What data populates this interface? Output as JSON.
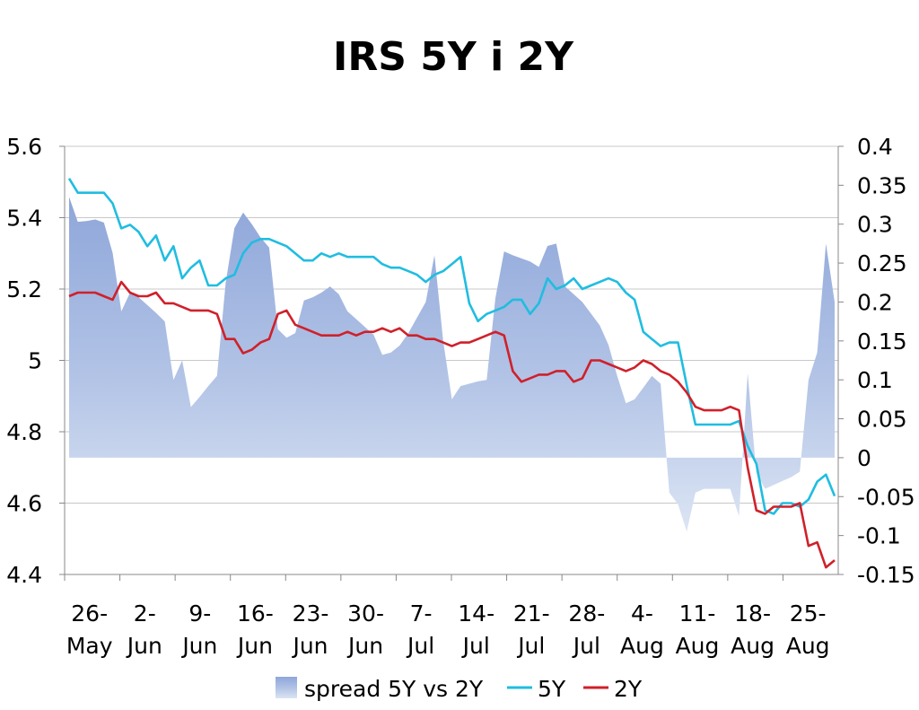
{
  "chart_data": {
    "type": "line",
    "title": "IRS 5Y i 2Y",
    "xlabel": "",
    "ylabel": "",
    "ylim": [
      4.4,
      5.6
    ],
    "y2lim": [
      -0.15,
      0.4
    ],
    "y_ticks": [
      "5.6",
      "5.4",
      "5.2",
      "5",
      "4.8",
      "4.6",
      "4.4"
    ],
    "y2_ticks": [
      "0.4",
      "0.35",
      "0.3",
      "0.25",
      "0.2",
      "0.15",
      "0.1",
      "0.05",
      "0",
      "-0.05",
      "-0.1",
      "-0.15"
    ],
    "x_ticks": [
      {
        "top": "26-",
        "bottom": "May"
      },
      {
        "top": "2-",
        "bottom": "Jun"
      },
      {
        "top": "9-",
        "bottom": "Jun"
      },
      {
        "top": "16-",
        "bottom": "Jun"
      },
      {
        "top": "23-",
        "bottom": "Jun"
      },
      {
        "top": "30-",
        "bottom": "Jun"
      },
      {
        "top": "7-",
        "bottom": "Jul"
      },
      {
        "top": "14-",
        "bottom": "Jul"
      },
      {
        "top": "21-",
        "bottom": "Jul"
      },
      {
        "top": "28-",
        "bottom": "Jul"
      },
      {
        "top": "4-",
        "bottom": "Aug"
      },
      {
        "top": "11-",
        "bottom": "Aug"
      },
      {
        "top": "18-",
        "bottom": "Aug"
      },
      {
        "top": "25-",
        "bottom": "Aug"
      }
    ],
    "grid": true,
    "legend_position": "bottom",
    "series": [
      {
        "name": "spread 5Y vs 2Y",
        "kind": "area",
        "axis": "right",
        "color": "#9fb3de",
        "values": [
          0.335,
          0.303,
          0.304,
          0.306,
          0.302,
          0.263,
          0.188,
          0.212,
          0.206,
          0.196,
          0.186,
          0.175,
          0.1,
          0.125,
          0.065,
          0.078,
          0.092,
          0.105,
          0.225,
          0.295,
          0.315,
          0.3,
          0.283,
          0.27,
          0.165,
          0.154,
          0.16,
          0.202,
          0.206,
          0.212,
          0.22,
          0.21,
          0.188,
          0.178,
          0.168,
          0.158,
          0.132,
          0.135,
          0.144,
          0.16,
          0.18,
          0.2,
          0.26,
          0.15,
          0.075,
          0.092,
          0.095,
          0.098,
          0.1,
          0.205,
          0.265,
          0.26,
          0.256,
          0.252,
          0.245,
          0.272,
          0.275,
          0.22,
          0.21,
          0.2,
          0.185,
          0.17,
          0.145,
          0.105,
          0.07,
          0.075,
          0.09,
          0.105,
          0.095,
          -0.045,
          -0.06,
          -0.095,
          -0.045,
          -0.04,
          -0.04,
          -0.04,
          -0.04,
          -0.075,
          0.108,
          -0.02,
          -0.04,
          -0.035,
          -0.03,
          -0.025,
          -0.018,
          0.1,
          0.135,
          0.275,
          0.2
        ]
      },
      {
        "name": "5Y",
        "kind": "line",
        "axis": "left",
        "color": "#20bde0",
        "values": [
          5.51,
          5.47,
          5.47,
          5.47,
          5.47,
          5.44,
          5.37,
          5.38,
          5.36,
          5.32,
          5.35,
          5.28,
          5.32,
          5.23,
          5.26,
          5.28,
          5.21,
          5.21,
          5.23,
          5.24,
          5.3,
          5.33,
          5.34,
          5.34,
          5.33,
          5.32,
          5.3,
          5.28,
          5.28,
          5.3,
          5.29,
          5.3,
          5.29,
          5.29,
          5.29,
          5.29,
          5.27,
          5.26,
          5.26,
          5.25,
          5.24,
          5.22,
          5.24,
          5.25,
          5.27,
          5.29,
          5.16,
          5.11,
          5.13,
          5.14,
          5.15,
          5.17,
          5.17,
          5.13,
          5.16,
          5.23,
          5.2,
          5.21,
          5.23,
          5.2,
          5.21,
          5.22,
          5.23,
          5.22,
          5.19,
          5.17,
          5.08,
          5.06,
          5.04,
          5.05,
          5.05,
          4.93,
          4.82,
          4.82,
          4.82,
          4.82,
          4.82,
          4.83,
          4.76,
          4.71,
          4.58,
          4.57,
          4.6,
          4.6,
          4.59,
          4.61,
          4.66,
          4.68,
          4.62
        ]
      },
      {
        "name": "2Y",
        "kind": "line",
        "axis": "left",
        "color": "#d0202a",
        "values": [
          5.18,
          5.19,
          5.19,
          5.19,
          5.18,
          5.17,
          5.22,
          5.19,
          5.18,
          5.18,
          5.19,
          5.16,
          5.16,
          5.15,
          5.14,
          5.14,
          5.14,
          5.13,
          5.06,
          5.06,
          5.02,
          5.03,
          5.05,
          5.06,
          5.13,
          5.14,
          5.1,
          5.09,
          5.08,
          5.07,
          5.07,
          5.07,
          5.08,
          5.07,
          5.08,
          5.08,
          5.09,
          5.08,
          5.09,
          5.07,
          5.07,
          5.06,
          5.06,
          5.05,
          5.04,
          5.05,
          5.05,
          5.06,
          5.07,
          5.08,
          5.07,
          4.97,
          4.94,
          4.95,
          4.96,
          4.96,
          4.97,
          4.97,
          4.94,
          4.95,
          5.0,
          5.0,
          4.99,
          4.98,
          4.97,
          4.98,
          5.0,
          4.99,
          4.97,
          4.96,
          4.94,
          4.91,
          4.87,
          4.86,
          4.86,
          4.86,
          4.87,
          4.86,
          4.7,
          4.58,
          4.57,
          4.59,
          4.59,
          4.59,
          4.6,
          4.48,
          4.49,
          4.42,
          4.44
        ]
      }
    ]
  }
}
